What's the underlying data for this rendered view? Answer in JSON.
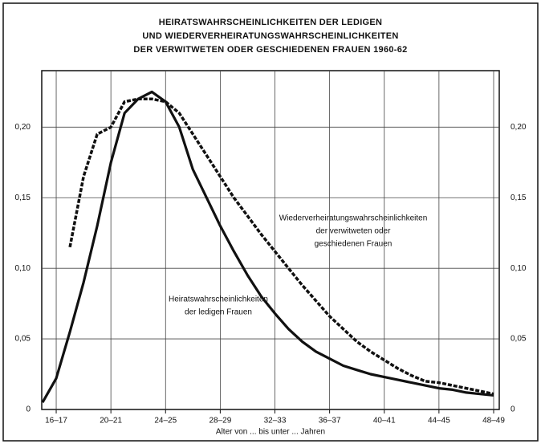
{
  "chart_data": {
    "type": "line",
    "title": [
      "HEIRATSWAHRSCHEINLICHKEITEN DER LEDIGEN",
      "UND WIEDERVERHEIRATUNGSWAHRSCHEINLICHKEITEN",
      "DER VERWITWETEN ODER GESCHIEDENEN FRAUEN 1960-62"
    ],
    "x_label": "Alter von ... bis unter ... Jahren",
    "categories": [
      null,
      "16–17",
      null,
      null,
      null,
      "20–21",
      null,
      null,
      null,
      "24–25",
      null,
      null,
      null,
      "28–29",
      null,
      null,
      null,
      "32–33",
      null,
      null,
      null,
      "36–37",
      null,
      null,
      null,
      "40–41",
      null,
      null,
      null,
      "44–45",
      null,
      null,
      null,
      "48–49"
    ],
    "ylim": [
      0,
      0.24
    ],
    "yticks": [
      0,
      {
        "value": 0.05,
        "label": "0,05"
      },
      {
        "value": 0.1,
        "label": "0,10"
      },
      {
        "value": 0.15,
        "label": "0,15"
      },
      {
        "value": 0.2,
        "label": "0,20"
      }
    ],
    "grid": true,
    "series": [
      {
        "name": [
          "Heiratswahrscheinlichkeiten",
          "der ledigen Frauen"
        ],
        "color": "#111111",
        "dash": false,
        "values": [
          0.005,
          0.022,
          0.055,
          0.09,
          0.13,
          0.175,
          0.21,
          0.22,
          0.225,
          0.218,
          0.2,
          0.17,
          0.15,
          0.13,
          0.112,
          0.095,
          0.08,
          0.068,
          0.057,
          0.048,
          0.041,
          0.036,
          0.031,
          0.028,
          0.025,
          0.023,
          0.021,
          0.019,
          0.017,
          0.015,
          0.014,
          0.012,
          0.011,
          0.01
        ]
      },
      {
        "name": [
          "Wiederverheiratungswahrscheinlichkeiten",
          "der verwitweten oder",
          "geschiedenen Frauen"
        ],
        "color": "#111111",
        "dash": true,
        "values": [
          null,
          null,
          0.115,
          0.165,
          0.195,
          0.2,
          0.218,
          0.22,
          0.22,
          0.218,
          0.21,
          0.195,
          0.18,
          0.165,
          0.15,
          0.137,
          0.124,
          0.112,
          0.1,
          0.088,
          0.077,
          0.066,
          0.057,
          0.048,
          0.041,
          0.035,
          0.029,
          0.024,
          0.02,
          0.019,
          0.017,
          0.015,
          0.013,
          0.011
        ]
      }
    ]
  }
}
